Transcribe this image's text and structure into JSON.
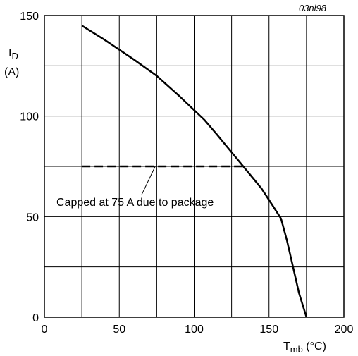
{
  "chart_data": {
    "type": "line",
    "figure_ref": "03nl98",
    "ylabel_main": "I",
    "ylabel_sub": "D",
    "ylabel_unit": "(A)",
    "xlabel_main": "T",
    "xlabel_sub": "mb",
    "xlabel_unit": " (°C)",
    "xlim": [
      0,
      200
    ],
    "ylim": [
      0,
      150
    ],
    "xticks": [
      0,
      50,
      100,
      150,
      200
    ],
    "yticks": [
      0,
      50,
      100,
      150
    ],
    "xgrid": [
      0,
      25,
      50,
      75,
      100,
      125,
      150,
      175,
      200
    ],
    "ygrid": [
      0,
      25,
      50,
      75,
      100,
      125,
      150
    ],
    "grid": true,
    "series": [
      {
        "values": [
          [
            25,
            145
          ],
          [
            40,
            138
          ],
          [
            60,
            128
          ],
          [
            75,
            120
          ],
          [
            90,
            110
          ],
          [
            107,
            98
          ],
          [
            115,
            91
          ],
          [
            125,
            82
          ],
          [
            135,
            73
          ],
          [
            145,
            64
          ],
          [
            152,
            56
          ],
          [
            158,
            49
          ],
          [
            162,
            38
          ],
          [
            166,
            25
          ],
          [
            170,
            12
          ],
          [
            175,
            0
          ]
        ]
      },
      {
        "style": "dashed",
        "values": [
          [
            25,
            75
          ],
          [
            135,
            75
          ]
        ]
      }
    ],
    "annotation": {
      "text": "Capped at 75 A due to package",
      "leader_from": [
        65,
        61
      ],
      "leader_to": [
        74,
        75
      ]
    }
  }
}
